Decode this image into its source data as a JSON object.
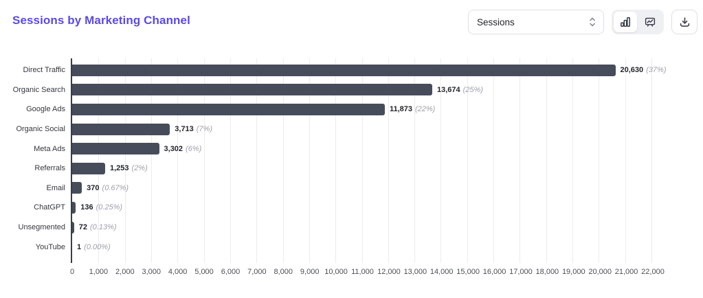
{
  "header": {
    "title": "Sessions by Marketing Channel",
    "metric_select": {
      "value": "Sessions",
      "icon": "chevron-up-down-icon"
    },
    "view_toggle": {
      "options": [
        {
          "name": "bar-chart-view",
          "icon": "bar-chart-icon",
          "selected": true
        },
        {
          "name": "trend-view",
          "icon": "presentation-trend-icon",
          "selected": false
        }
      ]
    },
    "download": {
      "icon": "download-icon"
    }
  },
  "colors": {
    "accent": "#5a4ae4",
    "bar_color": "#474c5a",
    "grid_line": "#ececf0",
    "axis_line": "#383c46",
    "label_text": "#33363e",
    "value_text": "#1f222a",
    "percent_text": "#9ca0aa",
    "tick_text": "#4b4e56",
    "border": "#dee0e6",
    "segmented_bg": "#eff0f3"
  },
  "chart_data": {
    "type": "bar",
    "orientation": "horizontal",
    "title": "Sessions by Marketing Channel",
    "xlabel": "",
    "ylabel": "",
    "grid": true,
    "legend": false,
    "xlim": [
      0,
      22000
    ],
    "x_tick_step": 1000,
    "categories": [
      "Direct Traffic",
      "Organic Search",
      "Google Ads",
      "Organic Social",
      "Meta Ads",
      "Referrals",
      "Email",
      "ChatGPT",
      "Unsegmented",
      "YouTube"
    ],
    "values": [
      20630,
      13674,
      11873,
      3713,
      3302,
      1253,
      370,
      136,
      72,
      1
    ],
    "value_labels": [
      "20,630",
      "13,674",
      "11,873",
      "3,713",
      "3,302",
      "1,253",
      "370",
      "136",
      "72",
      "1"
    ],
    "percent_labels": [
      "(37%)",
      "(25%)",
      "(22%)",
      "(7%)",
      "(6%)",
      "(2%)",
      "(0.67%)",
      "(0.25%)",
      "(0.13%)",
      "(0.00%)"
    ],
    "x_ticks": [
      {
        "value": 0,
        "label": "0"
      },
      {
        "value": 1000,
        "label": "1,000"
      },
      {
        "value": 2000,
        "label": "2,000"
      },
      {
        "value": 3000,
        "label": "3,000"
      },
      {
        "value": 4000,
        "label": "4,000"
      },
      {
        "value": 5000,
        "label": "5,000"
      },
      {
        "value": 6000,
        "label": "6,000"
      },
      {
        "value": 7000,
        "label": "7,000"
      },
      {
        "value": 8000,
        "label": "8,000"
      },
      {
        "value": 9000,
        "label": "9,000"
      },
      {
        "value": 10000,
        "label": "10,000"
      },
      {
        "value": 11000,
        "label": "11,000"
      },
      {
        "value": 12000,
        "label": "12,000"
      },
      {
        "value": 13000,
        "label": "13,000"
      },
      {
        "value": 14000,
        "label": "14,000"
      },
      {
        "value": 15000,
        "label": "15,000"
      },
      {
        "value": 16000,
        "label": "16,000"
      },
      {
        "value": 17000,
        "label": "17,000"
      },
      {
        "value": 18000,
        "label": "18,000"
      },
      {
        "value": 19000,
        "label": "19,000"
      },
      {
        "value": 20000,
        "label": "20,000"
      },
      {
        "value": 21000,
        "label": "21,000"
      },
      {
        "value": 22000,
        "label": "22,000"
      }
    ]
  }
}
